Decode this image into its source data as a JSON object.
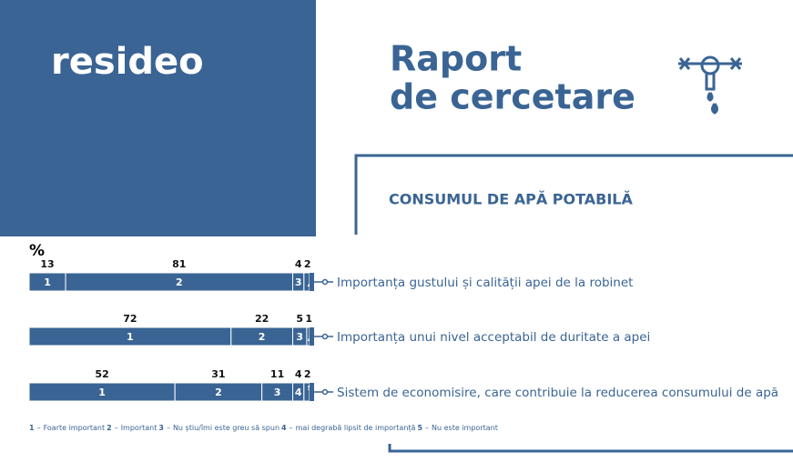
{
  "logo": "resideo",
  "title_lines": [
    "Raport",
    "de cercetare"
  ],
  "subtitle": "CONSUMUL DE APĂ POTABILĂ",
  "chart_data": {
    "type": "stacked-bar",
    "unit": "%",
    "categories": [
      "Importanța gustului și calității apei de la robinet",
      "Importanța unui nivel acceptabil de duritate a apei",
      "Sistem de economisire, care contribuie la reducerea consumului de apă"
    ],
    "series": [
      {
        "key": "1",
        "name": "Foarte important",
        "color": "#3a6494",
        "values": [
          13,
          72,
          52
        ]
      },
      {
        "key": "2",
        "name": "Important",
        "color": "#3a6494",
        "values": [
          81,
          22,
          31
        ]
      },
      {
        "key": "3",
        "name": "Nu știu/îmi este greu să spun",
        "color": "#3a6494",
        "values": [
          4,
          5,
          11
        ]
      },
      {
        "key": "4",
        "name": "mai degrabă lipsit de importanță",
        "color": "#3a6494",
        "values": [
          2,
          1,
          4
        ]
      },
      {
        "key": "5",
        "name": "Nu este important",
        "color": "#3a6494",
        "values": [
          0,
          0,
          2
        ]
      }
    ],
    "legend_separator": "–",
    "xlim": [
      0,
      100
    ]
  }
}
